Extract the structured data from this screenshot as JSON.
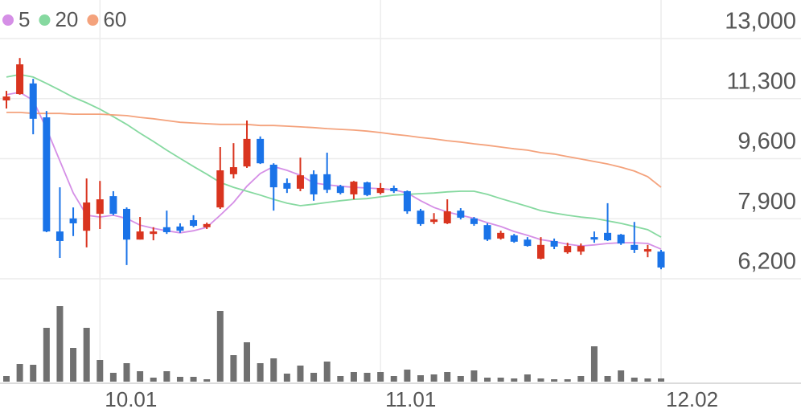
{
  "chart_data": {
    "type": "candlestick",
    "categories": [
      null,
      null,
      null,
      null,
      null,
      null,
      null,
      "10.01",
      null,
      null,
      null,
      null,
      null,
      null,
      null,
      null,
      null,
      null,
      null,
      null,
      null,
      null,
      null,
      null,
      null,
      null,
      null,
      null,
      "11.01",
      null,
      null,
      null,
      null,
      null,
      null,
      null,
      null,
      null,
      null,
      null,
      null,
      null,
      null,
      null,
      null,
      null,
      null,
      null,
      null,
      "12.02"
    ],
    "open": [
      11250,
      11430,
      11730,
      10770,
      7540,
      7910,
      7560,
      8040,
      8540,
      8180,
      7310,
      7470,
      7660,
      7680,
      7860,
      7660,
      8220,
      9160,
      9380,
      10160,
      9430,
      8910,
      8750,
      9160,
      9160,
      8820,
      8590,
      8930,
      8630,
      8770,
      8680,
      8130,
      7810,
      7770,
      8130,
      7910,
      7720,
      7340,
      7430,
      7310,
      6770,
      7270,
      6950,
      6970,
      7380,
      7500,
      7450,
      7160,
      6970,
      6970
    ],
    "high": [
      11520,
      12450,
      11860,
      10950,
      8790,
      8220,
      9040,
      8970,
      8680,
      8220,
      7950,
      7660,
      8130,
      7770,
      8000,
      7790,
      9930,
      10040,
      10680,
      10230,
      9470,
      9040,
      9630,
      9270,
      9770,
      8860,
      8970,
      8950,
      8910,
      8840,
      8700,
      8180,
      8060,
      8450,
      8200,
      7950,
      7770,
      7560,
      7470,
      7380,
      7380,
      7340,
      7220,
      7200,
      7540,
      8340,
      7470,
      7810,
      7160,
      7020
    ],
    "low": [
      11020,
      11410,
      10290,
      7520,
      6790,
      7410,
      7090,
      7610,
      8000,
      6590,
      7310,
      7290,
      7470,
      7500,
      7660,
      7610,
      8180,
      9040,
      9340,
      9450,
      8130,
      8630,
      8680,
      8410,
      8630,
      8590,
      8450,
      8540,
      8590,
      8630,
      8040,
      7700,
      7750,
      7750,
      7880,
      7700,
      7270,
      7310,
      7220,
      7110,
      6750,
      7040,
      6910,
      6880,
      7220,
      7270,
      7160,
      6930,
      6810,
      6470
    ],
    "close": [
      11360,
      12270,
      10730,
      7540,
      7270,
      7770,
      8360,
      8450,
      8040,
      7310,
      7540,
      7540,
      7520,
      7560,
      7700,
      7750,
      9270,
      9360,
      10160,
      9470,
      8790,
      8750,
      9130,
      8590,
      8720,
      8630,
      8950,
      8570,
      8770,
      8680,
      8110,
      7750,
      7880,
      8110,
      7930,
      7750,
      7310,
      7500,
      7250,
      7130,
      7160,
      7110,
      7130,
      7130,
      7310,
      7290,
      7200,
      7020,
      7040,
      6520
    ],
    "up_color": "#d9341f",
    "down_color": "#1a73e8",
    "series": [
      {
        "name": "5",
        "color": "#d58fe6",
        "values": [
          11410,
          11480,
          11250,
          10450,
          9540,
          8630,
          8000,
          7950,
          8000,
          7910,
          7720,
          7630,
          7560,
          7500,
          7560,
          7660,
          8000,
          8360,
          8820,
          9180,
          9380,
          9270,
          9130,
          8910,
          8860,
          8820,
          8790,
          8770,
          8750,
          8720,
          8630,
          8410,
          8220,
          8090,
          8000,
          7910,
          7790,
          7680,
          7540,
          7430,
          7310,
          7250,
          7180,
          7130,
          7160,
          7200,
          7220,
          7220,
          7200,
          7040
        ]
      },
      {
        "name": "20",
        "color": "#86d9a0",
        "values": [
          11910,
          11980,
          11910,
          11730,
          11540,
          11340,
          11180,
          11000,
          10790,
          10570,
          10320,
          10090,
          9840,
          9610,
          9380,
          9160,
          8930,
          8790,
          8680,
          8570,
          8450,
          8340,
          8270,
          8310,
          8360,
          8410,
          8450,
          8470,
          8520,
          8570,
          8590,
          8610,
          8630,
          8660,
          8680,
          8680,
          8590,
          8470,
          8360,
          8250,
          8130,
          8060,
          8000,
          7950,
          7910,
          7840,
          7770,
          7680,
          7590,
          7380
        ]
      },
      {
        "name": "60",
        "color": "#f4a27c",
        "values": [
          10910,
          10910,
          10880,
          10880,
          10880,
          10860,
          10860,
          10860,
          10840,
          10820,
          10770,
          10730,
          10680,
          10630,
          10610,
          10590,
          10570,
          10570,
          10570,
          10540,
          10540,
          10520,
          10500,
          10480,
          10450,
          10430,
          10410,
          10380,
          10340,
          10290,
          10250,
          10200,
          10160,
          10110,
          10070,
          10020,
          9980,
          9930,
          9880,
          9840,
          9770,
          9730,
          9660,
          9590,
          9520,
          9450,
          9360,
          9250,
          9090,
          8790
        ]
      }
    ],
    "volume": {
      "color": "#707070",
      "values": [
        70000,
        220000,
        210000,
        670000,
        940000,
        420000,
        670000,
        270000,
        110000,
        230000,
        130000,
        50000,
        130000,
        60000,
        60000,
        30000,
        880000,
        330000,
        490000,
        230000,
        290000,
        100000,
        200000,
        110000,
        250000,
        70000,
        120000,
        110000,
        120000,
        70000,
        150000,
        80000,
        90000,
        120000,
        70000,
        140000,
        50000,
        50000,
        40000,
        90000,
        40000,
        30000,
        30000,
        70000,
        440000,
        70000,
        140000,
        50000,
        40000,
        40000
      ]
    },
    "ylim": [
      6200,
      13000
    ],
    "yticks": [
      {
        "value": 13000,
        "label": "13,000"
      },
      {
        "value": 11300,
        "label": "11,300"
      },
      {
        "value": 9600,
        "label": "9,600"
      },
      {
        "value": 7900,
        "label": "7,900"
      },
      {
        "value": 6200,
        "label": "6,200"
      }
    ],
    "grid": true
  }
}
